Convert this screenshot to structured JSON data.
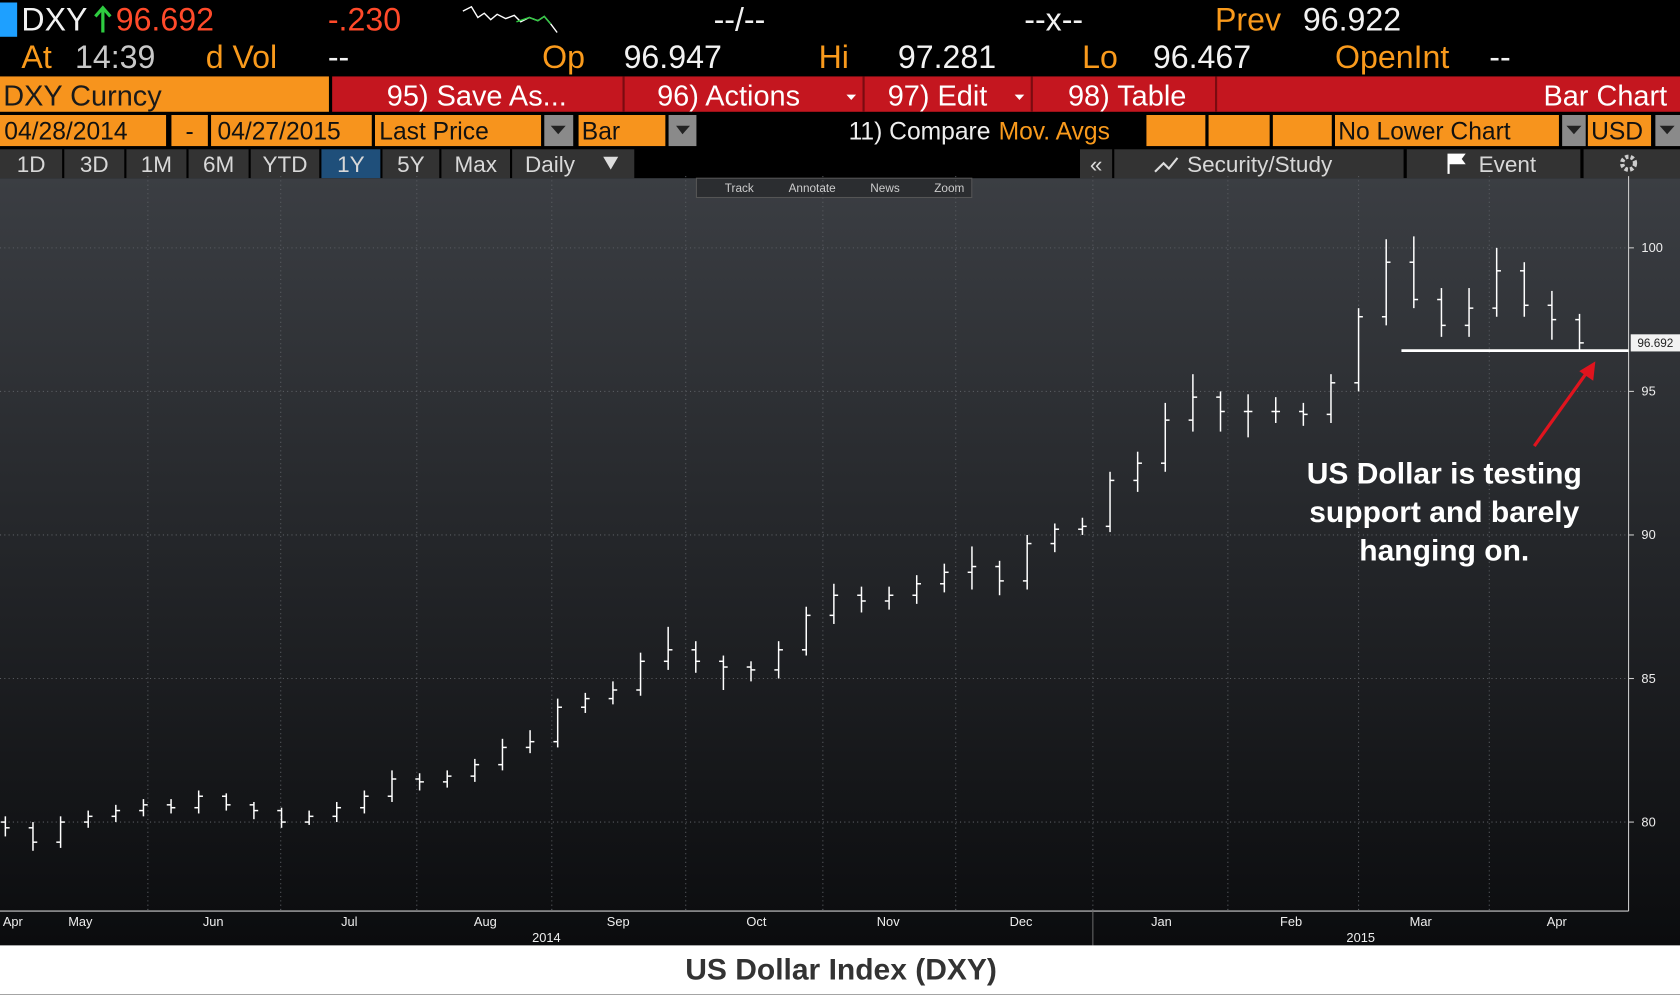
{
  "header": {
    "ticker": "DXY",
    "last": "96.692",
    "change": "-.230",
    "bidask": "--/--",
    "size": "--x--",
    "prev_label": "Prev",
    "prev": "96.922",
    "at_label": "At",
    "time": "14:39",
    "vol_label": "d Vol",
    "vol": "--",
    "open_label": "Op",
    "open": "96.947",
    "high_label": "Hi",
    "high": "97.281",
    "low_label": "Lo",
    "low": "96.467",
    "oi_label": "OpenInt",
    "oi": "--"
  },
  "toolbar": {
    "security": "DXY Curncy",
    "buttons": [
      "95) Save As...",
      "96) Actions",
      "97) Edit",
      "98) Table"
    ],
    "view": "Bar Chart"
  },
  "settings": {
    "start": "04/28/2014",
    "dash": "-",
    "end": "04/27/2015",
    "field": "Last Price",
    "style": "Bar",
    "compare": "11) Compare",
    "studies": "Mov. Avgs",
    "lower": "No Lower Chart",
    "currency": "USD"
  },
  "periods": {
    "options": [
      "1D",
      "3D",
      "1M",
      "6M",
      "YTD",
      "1Y",
      "5Y",
      "Max"
    ],
    "selected": "1Y",
    "frequency": "Daily",
    "collapse": "«",
    "study": "Security/Study",
    "event": "Event"
  },
  "chart_tools": [
    "Track",
    "Annotate",
    "News",
    "Zoom"
  ],
  "chart_data": {
    "type": "ohlc",
    "color": "#ffffff",
    "ylim": [
      76.9,
      102.5
    ],
    "yticks": [
      80,
      85,
      90,
      95,
      100
    ],
    "grid": true,
    "x_labels": [
      "Apr",
      "May",
      "Jun",
      "Jul",
      "Aug",
      "Sep",
      "Oct",
      "Nov",
      "Dec",
      "Jan",
      "Feb",
      "Mar",
      "Apr"
    ],
    "years": [
      "2014",
      "2015"
    ],
    "last_value_label": "96.692",
    "support_level": 96.42,
    "annotation": [
      "US Dollar is testing",
      "support and barely",
      "hanging on."
    ],
    "series": {
      "open": [
        80.0,
        79.8,
        79.3,
        80.0,
        80.2,
        80.4,
        80.6,
        80.5,
        80.9,
        80.6,
        80.4,
        80.0,
        80.2,
        80.5,
        80.9,
        81.5,
        81.4,
        81.6,
        82.0,
        82.6,
        82.8,
        84.0,
        84.3,
        84.6,
        85.6,
        86.0,
        85.6,
        85.4,
        85.3,
        86.0,
        87.2,
        87.9,
        87.7,
        87.9,
        88.3,
        88.7,
        88.9,
        88.4,
        89.7,
        90.2,
        90.3,
        91.9,
        92.5,
        94.0,
        94.8,
        94.3,
        94.3,
        94.3,
        94.2,
        95.3,
        97.6,
        99.5,
        98.2,
        97.3,
        97.9,
        99.2,
        98.0,
        97.5
      ],
      "high": [
        80.2,
        80.0,
        80.2,
        80.4,
        80.6,
        80.8,
        80.8,
        81.1,
        81.0,
        80.7,
        80.5,
        80.4,
        80.7,
        81.1,
        81.8,
        81.7,
        81.8,
        82.2,
        82.9,
        83.2,
        84.3,
        84.5,
        84.9,
        85.9,
        86.8,
        86.3,
        85.8,
        85.6,
        86.3,
        87.5,
        88.3,
        88.2,
        88.2,
        88.6,
        89.0,
        89.6,
        89.1,
        90.0,
        90.4,
        90.6,
        92.2,
        92.9,
        94.6,
        95.6,
        95.0,
        94.9,
        94.8,
        94.6,
        95.6,
        97.9,
        100.3,
        100.4,
        98.6,
        98.6,
        100.0,
        99.5,
        98.5,
        97.7
      ],
      "low": [
        79.5,
        79.0,
        79.1,
        79.8,
        80.0,
        80.2,
        80.3,
        80.3,
        80.4,
        80.1,
        79.8,
        79.9,
        80.0,
        80.3,
        80.7,
        81.1,
        81.2,
        81.4,
        81.8,
        82.4,
        82.6,
        83.8,
        84.1,
        84.4,
        85.3,
        85.2,
        84.6,
        84.9,
        85.0,
        85.8,
        86.9,
        87.3,
        87.4,
        87.6,
        88.0,
        88.1,
        87.9,
        88.1,
        89.4,
        90.0,
        90.1,
        91.5,
        92.2,
        93.6,
        93.6,
        93.4,
        93.9,
        93.8,
        93.9,
        95.0,
        97.3,
        97.9,
        96.9,
        96.9,
        97.6,
        97.6,
        96.8,
        96.4
      ],
      "close": [
        79.8,
        79.3,
        80.0,
        80.2,
        80.4,
        80.6,
        80.5,
        80.9,
        80.6,
        80.4,
        80.0,
        80.2,
        80.5,
        80.9,
        81.5,
        81.4,
        81.6,
        82.0,
        82.6,
        82.8,
        84.0,
        84.3,
        84.6,
        85.6,
        86.0,
        85.6,
        85.4,
        85.3,
        86.0,
        87.2,
        87.9,
        87.7,
        87.9,
        88.3,
        88.7,
        88.9,
        88.4,
        89.7,
        90.2,
        90.3,
        91.9,
        92.5,
        94.0,
        94.8,
        94.3,
        94.3,
        94.3,
        94.2,
        95.3,
        97.6,
        99.5,
        98.2,
        97.3,
        97.9,
        99.2,
        98.0,
        97.5,
        96.69
      ]
    }
  },
  "caption": "US Dollar Index (DXY)"
}
